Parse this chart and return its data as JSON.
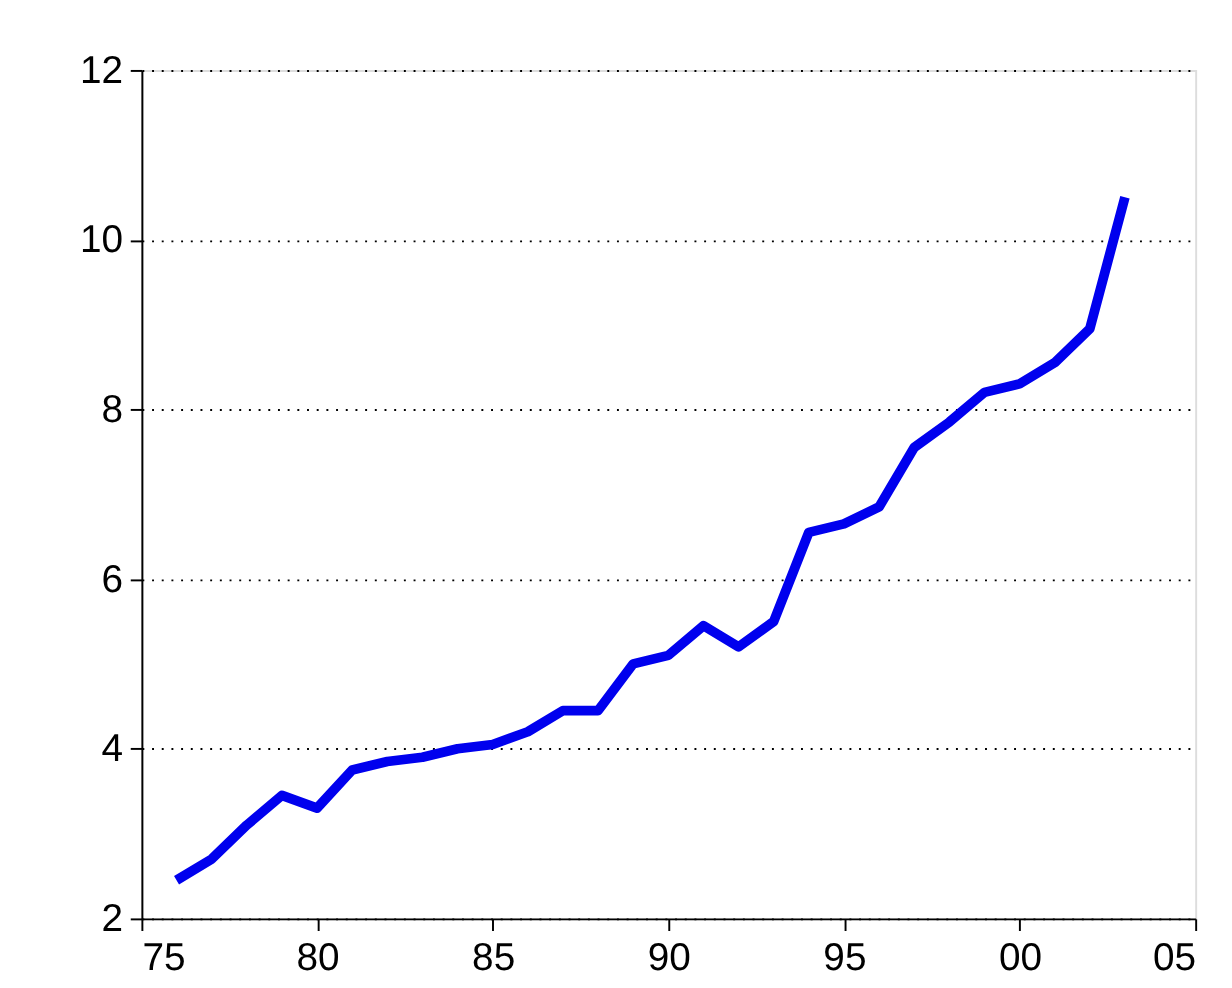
{
  "chart_data": {
    "type": "line",
    "x": [
      1976,
      1977,
      1978,
      1979,
      1980,
      1981,
      1982,
      1983,
      1984,
      1985,
      1986,
      1987,
      1988,
      1989,
      1990,
      1991,
      1992,
      1993,
      1994,
      1995,
      1996,
      1997,
      1998,
      1999,
      2000,
      2001,
      2002,
      2003
    ],
    "series": [
      {
        "color": "#0000ee",
        "values": [
          2.45,
          2.7,
          3.1,
          3.45,
          3.3,
          3.75,
          3.85,
          3.9,
          4.0,
          4.05,
          4.2,
          4.45,
          4.45,
          5.0,
          5.1,
          5.45,
          5.2,
          5.5,
          6.55,
          6.65,
          6.85,
          7.55,
          7.85,
          8.2,
          8.3,
          8.55,
          8.95,
          10.5
        ]
      }
    ],
    "xlim": [
      1975,
      2005
    ],
    "xticks": [
      {
        "value": 1975,
        "label": "75"
      },
      {
        "value": 1980,
        "label": "80"
      },
      {
        "value": 1985,
        "label": "85"
      },
      {
        "value": 1990,
        "label": "90"
      },
      {
        "value": 1995,
        "label": "95"
      },
      {
        "value": 2000,
        "label": "00"
      },
      {
        "value": 2005,
        "label": "05"
      }
    ],
    "ylim": [
      2,
      12
    ],
    "yticks": [
      2,
      4,
      6,
      8,
      10,
      12
    ],
    "grid": "y",
    "marker": "none",
    "line_style": "solid"
  }
}
